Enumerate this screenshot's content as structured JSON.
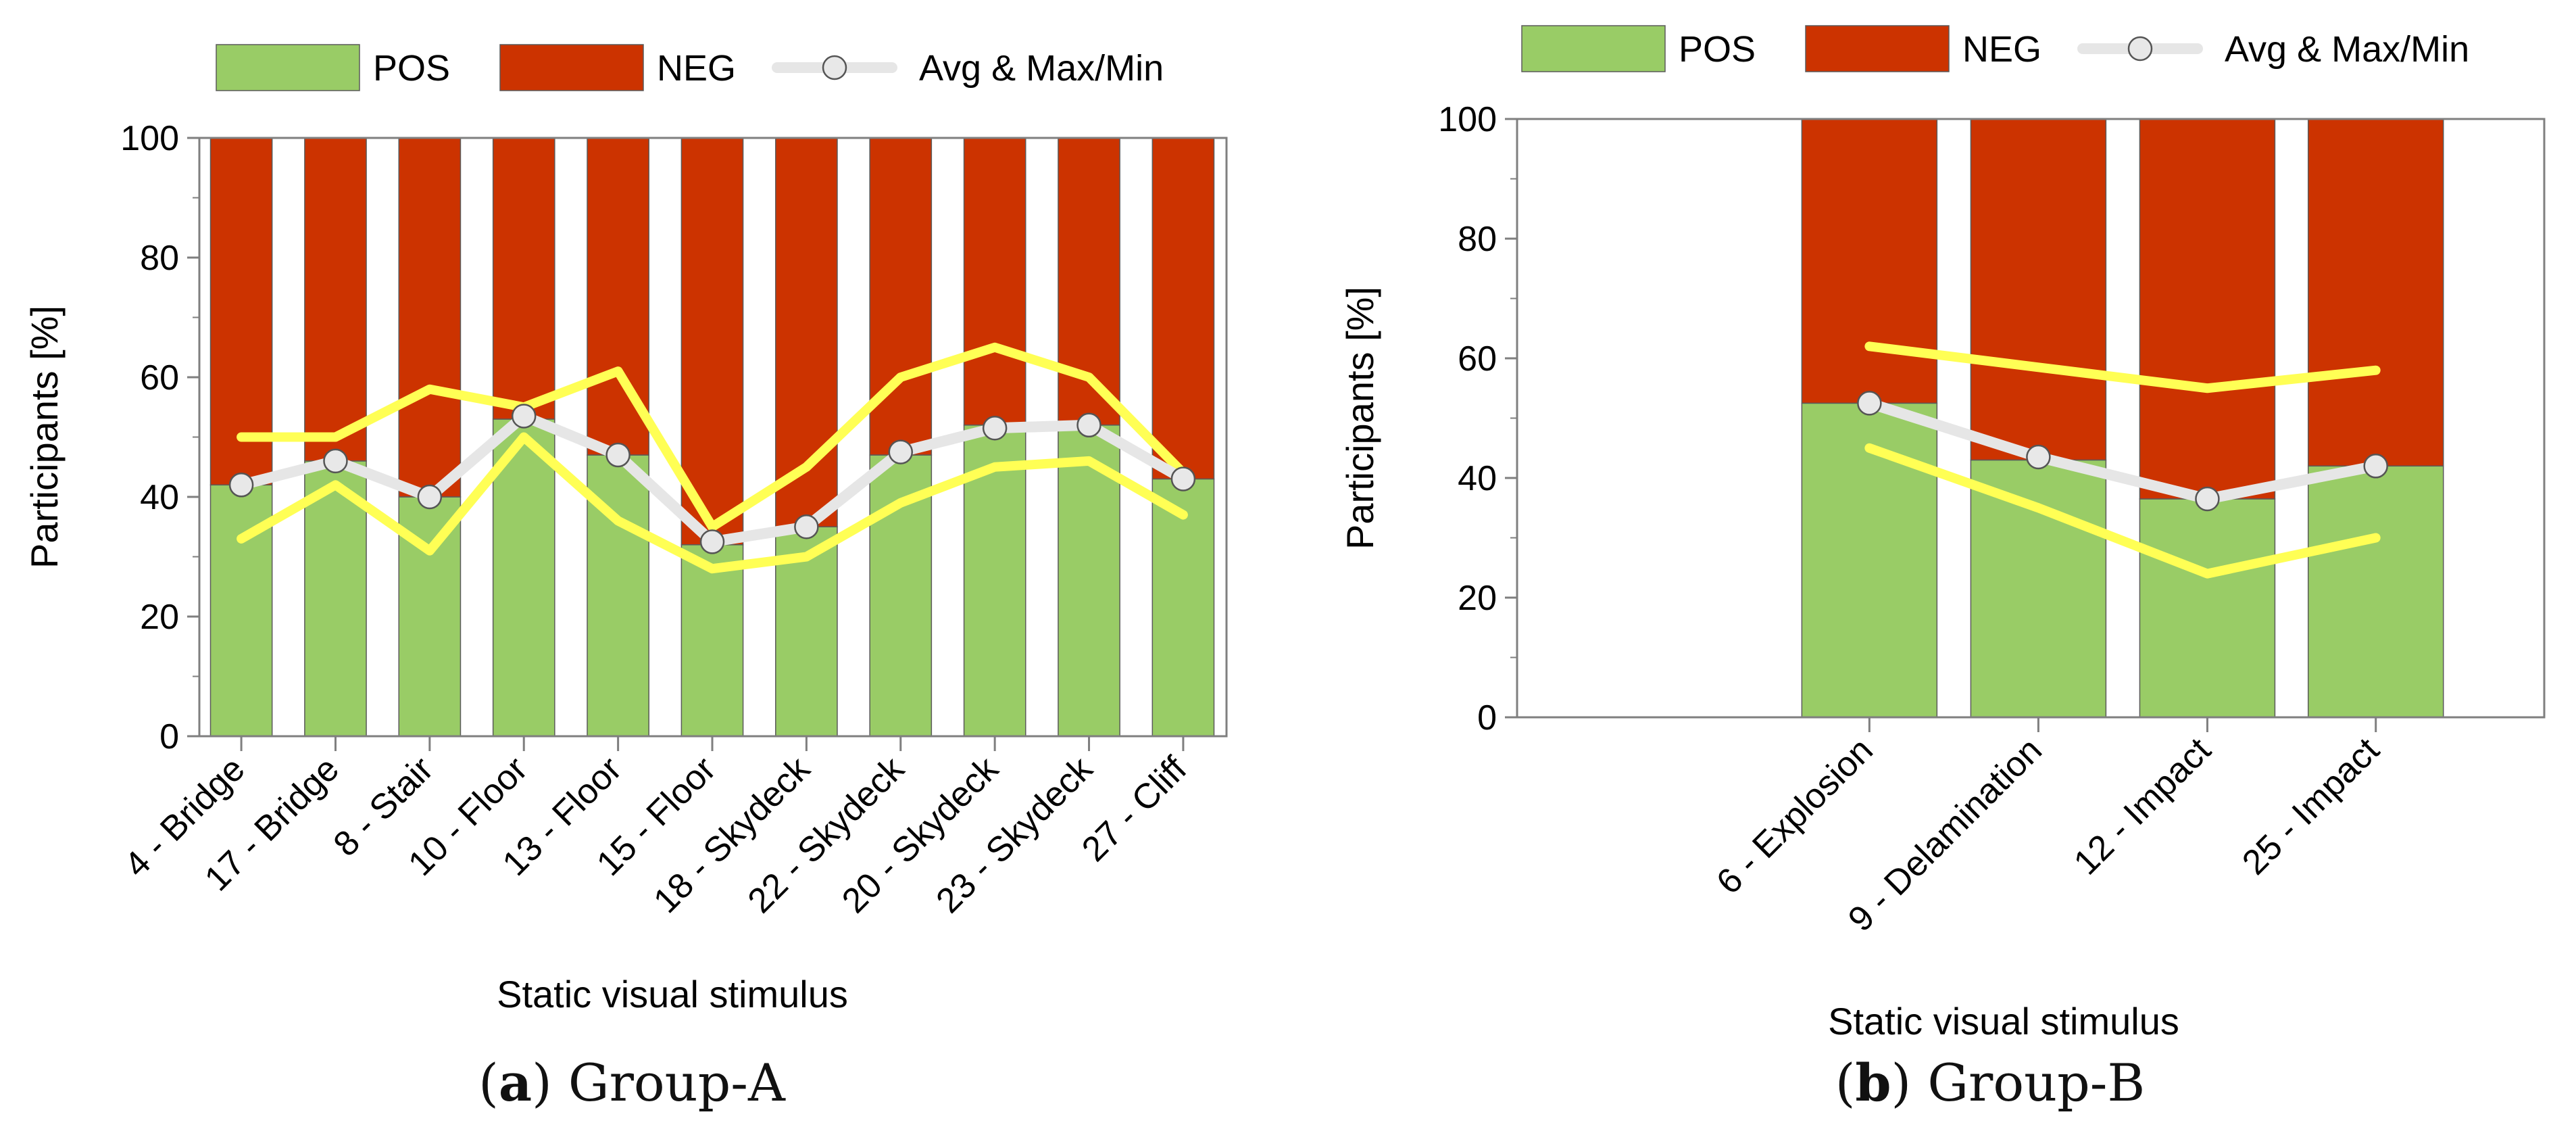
{
  "colors": {
    "pos": "#99cc66",
    "neg": "#cc3300",
    "avg": "#e6e6e6",
    "maxmin": "#ffff55",
    "axis": "#7f7f7f"
  },
  "chart_data": [
    {
      "type": "bar",
      "stacked": true,
      "title": "",
      "xlabel": "Static visual stimulus",
      "ylabel": "Participants  [%]",
      "ylim": [
        0,
        100
      ],
      "yticks": [
        0,
        20,
        40,
        60,
        80,
        100
      ],
      "legend": {
        "position": "top",
        "pos_label": "POS",
        "neg_label": "NEG",
        "line_label": "Avg & Max/Min"
      },
      "categories": [
        "4 - Bridge",
        "17 - Bridge",
        "8 - Stair",
        "10 - Floor",
        "13 - Floor",
        "15 - Floor",
        "18 - Skydeck",
        "22 - Skydeck",
        "20 - Skydeck",
        "23 - Skydeck",
        "27 - Cliff"
      ],
      "series": [
        {
          "name": "POS",
          "values": [
            42,
            46,
            40,
            53,
            47,
            32,
            35,
            47,
            52,
            52,
            43
          ]
        },
        {
          "name": "NEG",
          "values": [
            58,
            54,
            60,
            47,
            53,
            68,
            65,
            53,
            48,
            48,
            57
          ]
        }
      ],
      "lines": [
        {
          "name": "Avg",
          "values": [
            42,
            46,
            40,
            53.5,
            47,
            32.5,
            35,
            47.5,
            51.5,
            52,
            43
          ]
        },
        {
          "name": "Max",
          "values": [
            50,
            50,
            58,
            55,
            61,
            35,
            45,
            60,
            65,
            60,
            44
          ]
        },
        {
          "name": "Min",
          "values": [
            33,
            42,
            31,
            50,
            36,
            28,
            30,
            39,
            45,
            46,
            37
          ]
        }
      ],
      "caption_letter": "a",
      "caption_text": "Group-A"
    },
    {
      "type": "bar",
      "stacked": true,
      "title": "",
      "xlabel": "Static visual stimulus",
      "ylabel": "Participants  [%]",
      "ylim": [
        0,
        100
      ],
      "yticks": [
        0,
        20,
        40,
        60,
        80,
        100
      ],
      "legend": {
        "position": "top",
        "pos_label": "POS",
        "neg_label": "NEG",
        "line_label": "Avg & Max/Min"
      },
      "categories": [
        "6 - Explosion",
        "9 - Delamination",
        "12 - Impact",
        "25 - Impact"
      ],
      "series": [
        {
          "name": "POS",
          "values": [
            52.5,
            43,
            36.5,
            42
          ]
        },
        {
          "name": "NEG",
          "values": [
            47.5,
            57,
            63.5,
            58
          ]
        }
      ],
      "lines": [
        {
          "name": "Avg",
          "values": [
            52.5,
            43.5,
            36.5,
            42
          ]
        },
        {
          "name": "Max",
          "values": [
            62,
            58.5,
            55,
            58
          ]
        },
        {
          "name": "Min",
          "values": [
            45,
            35,
            24,
            30
          ]
        }
      ],
      "caption_letter": "b",
      "caption_text": "Group-B"
    }
  ]
}
